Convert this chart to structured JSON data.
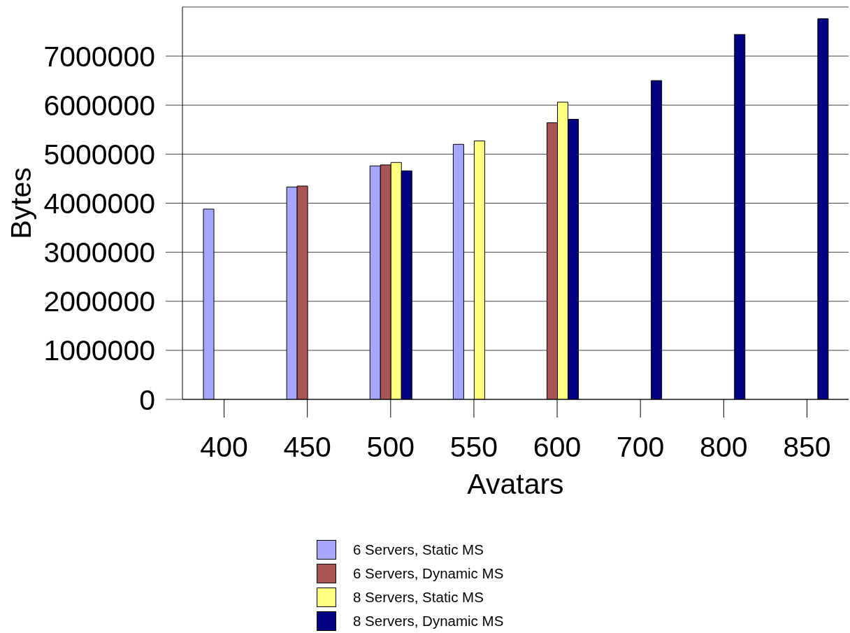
{
  "chart_data": {
    "type": "bar",
    "xlabel": "Avatars",
    "ylabel": "Bytes",
    "categories": [
      "400",
      "450",
      "500",
      "550",
      "600",
      "700",
      "800",
      "850"
    ],
    "series": [
      {
        "name": "6 Servers, Static MS",
        "color": "#a6a6ff",
        "values": [
          3880000,
          4330000,
          4760000,
          5200000,
          null,
          null,
          null,
          null
        ]
      },
      {
        "name": "6 Servers, Dynamic MS",
        "color": "#aa5555",
        "values": [
          null,
          4350000,
          4780000,
          null,
          5640000,
          null,
          null,
          null
        ]
      },
      {
        "name": "8 Servers, Static MS",
        "color": "#ffff80",
        "values": [
          null,
          null,
          4830000,
          5270000,
          6060000,
          null,
          null,
          null
        ]
      },
      {
        "name": "8 Servers, Dynamic MS",
        "color": "#000080",
        "values": [
          null,
          null,
          4660000,
          null,
          5710000,
          6500000,
          7440000,
          7760000
        ]
      }
    ],
    "ylim": [
      0,
      8000000
    ],
    "yticks": [
      0,
      1000000,
      2000000,
      3000000,
      4000000,
      5000000,
      6000000,
      7000000
    ],
    "grid": "y",
    "legend": "bottom"
  }
}
